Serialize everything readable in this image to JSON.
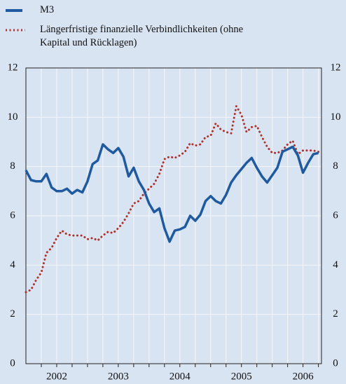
{
  "chart_data": {
    "type": "line",
    "x": [
      2002,
      2002.083,
      2002.167,
      2002.25,
      2002.333,
      2002.417,
      2002.5,
      2002.583,
      2002.667,
      2002.75,
      2002.833,
      2002.917,
      2003,
      2003.083,
      2003.167,
      2003.25,
      2003.333,
      2003.417,
      2003.5,
      2003.583,
      2003.667,
      2003.75,
      2003.833,
      2003.917,
      2004,
      2004.083,
      2004.167,
      2004.25,
      2004.333,
      2004.417,
      2004.5,
      2004.583,
      2004.667,
      2004.75,
      2004.833,
      2004.917,
      2005,
      2005.083,
      2005.167,
      2005.25,
      2005.333,
      2005.417,
      2005.5,
      2005.583,
      2005.667,
      2005.75,
      2005.833,
      2005.917,
      2006,
      2006.083,
      2006.167,
      2006.25,
      2006.333,
      2006.417,
      2006.5,
      2006.583,
      2006.667,
      2006.75
    ],
    "series": [
      {
        "name": "M3",
        "color": "#1f5aa0",
        "style": "solid",
        "values": [
          7.85,
          7.45,
          7.4,
          7.4,
          7.7,
          7.15,
          7.0,
          7.0,
          7.1,
          6.9,
          7.05,
          6.95,
          7.4,
          8.1,
          8.25,
          8.9,
          8.7,
          8.55,
          8.75,
          8.4,
          7.6,
          7.95,
          7.4,
          7.05,
          6.5,
          6.15,
          6.3,
          5.5,
          4.95,
          5.4,
          5.45,
          5.55,
          6.0,
          5.8,
          6.05,
          6.6,
          6.8,
          6.6,
          6.5,
          6.85,
          7.35,
          7.65,
          7.9,
          8.15,
          8.35,
          7.95,
          7.6,
          7.35,
          7.65,
          7.95,
          8.6,
          8.7,
          8.8,
          8.45,
          7.75,
          8.15,
          8.5,
          8.55
        ]
      },
      {
        "name": "Längerfristige finanzielle Verbindlichkeiten (ohne Kapital und Rücklagen)",
        "color": "#b0302c",
        "style": "dotted",
        "values": [
          2.9,
          3.0,
          3.4,
          3.7,
          4.5,
          4.7,
          5.1,
          5.4,
          5.25,
          5.2,
          5.2,
          5.2,
          5.05,
          5.1,
          5.0,
          5.2,
          5.35,
          5.3,
          5.5,
          5.75,
          6.1,
          6.5,
          6.6,
          6.9,
          7.1,
          7.3,
          7.7,
          8.3,
          8.4,
          8.35,
          8.45,
          8.6,
          8.95,
          8.85,
          8.9,
          9.2,
          9.25,
          9.75,
          9.5,
          9.4,
          9.35,
          10.45,
          10.1,
          9.4,
          9.6,
          9.65,
          9.2,
          8.8,
          8.55,
          8.55,
          8.65,
          8.9,
          9.05,
          8.5,
          8.65,
          8.65,
          8.65,
          8.6
        ]
      }
    ],
    "xlim": [
      2002,
      2006.8
    ],
    "xticks": [
      {
        "value": 2002.5,
        "label": "2002"
      },
      {
        "value": 2003.5,
        "label": "2003"
      },
      {
        "value": 2004.5,
        "label": "2004"
      },
      {
        "value": 2005.5,
        "label": "2005"
      },
      {
        "value": 2006.5,
        "label": "2006"
      }
    ],
    "xgrid": [
      2002.25,
      2002.5,
      2002.75,
      2003,
      2003.25,
      2003.5,
      2003.75,
      2004,
      2004.25,
      2004.5,
      2004.75,
      2005,
      2005.25,
      2005.5,
      2005.75,
      2006,
      2006.25,
      2006.5,
      2006.75
    ],
    "ylim": [
      0,
      12
    ],
    "yticks": [
      0,
      2,
      4,
      6,
      8,
      10,
      12
    ],
    "grid": true
  }
}
